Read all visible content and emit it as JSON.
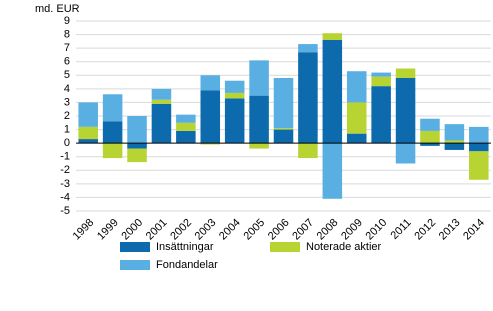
{
  "chart_data": {
    "type": "stacked_bar",
    "y_unit_label": "md. EUR",
    "categories": [
      "1998",
      "1999",
      "2000",
      "2001",
      "2002",
      "2003",
      "2004",
      "2005",
      "2006",
      "2007",
      "2008",
      "2009",
      "2010",
      "2011",
      "2012",
      "2013",
      "2014"
    ],
    "series": [
      {
        "name": "Insättningar",
        "color": "#0d6aad",
        "values": [
          0.3,
          1.6,
          -0.4,
          2.9,
          0.9,
          3.9,
          3.3,
          3.5,
          1.0,
          6.7,
          7.6,
          0.7,
          4.2,
          4.8,
          -0.2,
          -0.5,
          -0.6
        ]
      },
      {
        "name": "Noterade aktier",
        "color": "#b8d433",
        "values": [
          0.9,
          -1.1,
          -1.0,
          0.3,
          0.6,
          -0.1,
          0.4,
          -0.4,
          0.1,
          -1.1,
          0.5,
          2.3,
          0.7,
          0.7,
          0.9,
          0.2,
          -2.1
        ]
      },
      {
        "name": "Fondandelar",
        "color": "#5aafe2",
        "values": [
          1.8,
          2.0,
          2.0,
          0.8,
          0.6,
          1.1,
          0.9,
          2.6,
          3.7,
          0.6,
          -4.1,
          2.3,
          0.3,
          -1.5,
          0.9,
          1.2,
          1.2
        ]
      }
    ],
    "ylim": [
      -5,
      9
    ],
    "yticks": [
      -5,
      -4,
      -3,
      -2,
      -1,
      0,
      1,
      2,
      3,
      4,
      5,
      6,
      7,
      8,
      9
    ],
    "grid": true
  }
}
